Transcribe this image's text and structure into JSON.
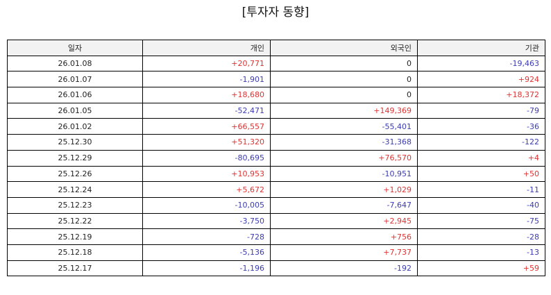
{
  "title": "[투자자 동향]",
  "colors": {
    "positive": "#e03131",
    "negative": "#3b3bb3",
    "neutral": "#222222",
    "header_bg": "#f2f2f2"
  },
  "table": {
    "columns": [
      "일자",
      "개인",
      "외국인",
      "기관"
    ],
    "rows": [
      [
        "26.01.08",
        "+20,771",
        "0",
        "-19,463"
      ],
      [
        "26.01.07",
        "-1,901",
        "0",
        "+924"
      ],
      [
        "26.01.06",
        "+18,680",
        "0",
        "+18,372"
      ],
      [
        "26.01.05",
        "-52,471",
        "+149,369",
        "-79"
      ],
      [
        "26.01.02",
        "+66,557",
        "-55,401",
        "-36"
      ],
      [
        "25.12.30",
        "+51,320",
        "-31,368",
        "-122"
      ],
      [
        "25.12.29",
        "-80,695",
        "+76,570",
        "+4"
      ],
      [
        "25.12.26",
        "+10,953",
        "-10,951",
        "+50"
      ],
      [
        "25.12.24",
        "+5,672",
        "+1,029",
        "-11"
      ],
      [
        "25.12.23",
        "-10,005",
        "-7,647",
        "-40"
      ],
      [
        "25.12.22",
        "-3,750",
        "+2,945",
        "-75"
      ],
      [
        "25.12.19",
        "-728",
        "+756",
        "-28"
      ],
      [
        "25.12.18",
        "-5,136",
        "+7,737",
        "-13"
      ],
      [
        "25.12.17",
        "-1,196",
        "-192",
        "+59"
      ]
    ]
  }
}
